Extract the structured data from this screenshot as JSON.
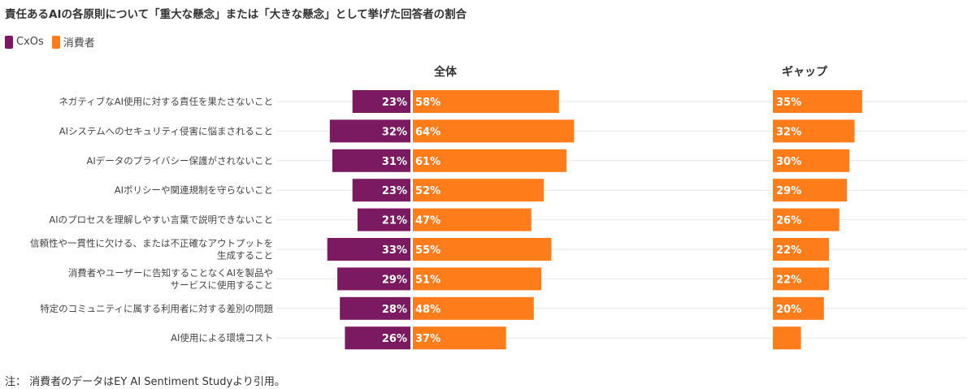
{
  "title": "責任あるAIの各原則について「重大な懸念」または「大きな懸念」として挙げた回答者の割合",
  "legend": [
    {
      "label": "CxOs",
      "color": "#7b1a61"
    },
    {
      "label": "消費者",
      "color": "#ff7c1a"
    }
  ],
  "note": "注： 消費者のデータはEY AI Sentiment Studyより引用。",
  "chart_data": {
    "type": "bar",
    "panels": [
      "全体",
      "ギャップ"
    ],
    "categories": [
      [
        "ネガティブなAI使用に対する責任を果たさないこと"
      ],
      [
        "AIシステムへのセキュリティ侵害に悩まされること"
      ],
      [
        "AIデータのプライバシー保護がされないこと"
      ],
      [
        "AIポリシーや関連規制を守らないこと"
      ],
      [
        "AIのプロセスを理解しやすい言葉で説明できないこと"
      ],
      [
        "信頼性や一貫性に欠ける、または不正確なアウトプットを",
        "生成すること"
      ],
      [
        "消費者やユーザーに告知することなくAIを製品や",
        "サービスに使用すること"
      ],
      [
        "特定のコミュニティに属する利用者に対する差別の問題"
      ],
      [
        "AI使用による環境コスト"
      ]
    ],
    "series": [
      {
        "name": "CxOs",
        "color": "#7b1a61",
        "values": [
          23,
          32,
          31,
          23,
          21,
          33,
          29,
          28,
          26
        ]
      },
      {
        "name": "消費者",
        "color": "#ff7c1a",
        "values": [
          58,
          64,
          61,
          52,
          47,
          55,
          51,
          48,
          37
        ]
      }
    ],
    "gap": {
      "color": "#ff7c1a",
      "values": [
        35,
        32,
        30,
        29,
        26,
        22,
        22,
        20,
        11
      ],
      "labels": [
        "35%",
        "32%",
        "30%",
        "29%",
        "26%",
        "22%",
        "22%",
        "20%",
        ""
      ]
    },
    "unit": "%"
  }
}
